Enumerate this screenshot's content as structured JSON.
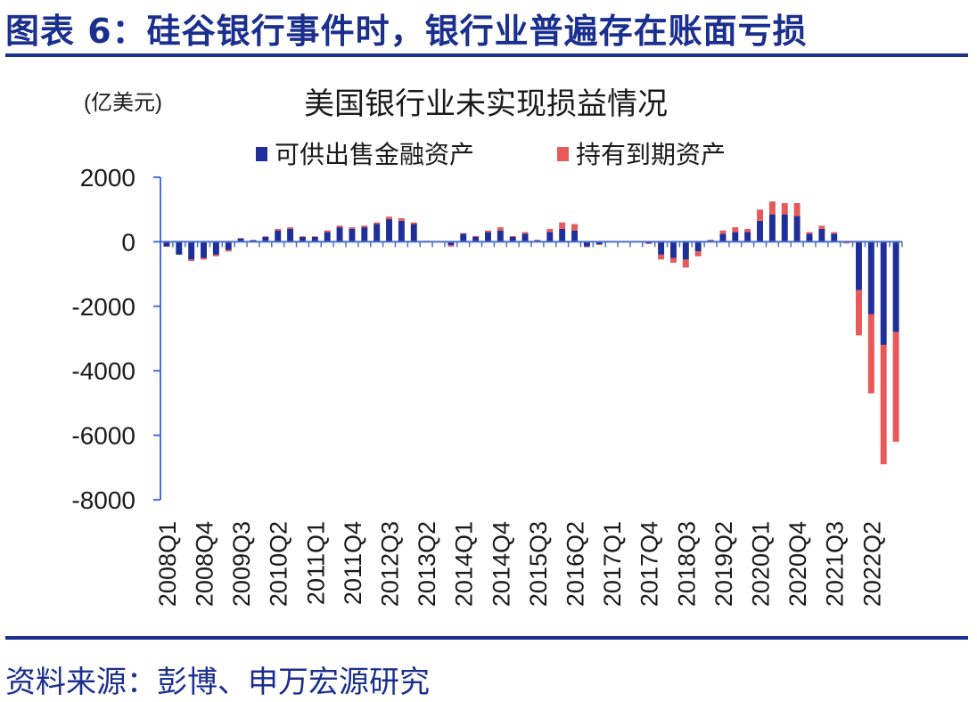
{
  "figure_title": "图表 6：硅谷银行事件时，银行业普遍存在账面亏损",
  "source_note": "资料来源：彭博、申万宏源研究",
  "colors": {
    "afs": "#1f2f9a",
    "htm": "#e8595a",
    "axis": "#4a6fd0",
    "title": "#1b2f8e"
  },
  "chart_data": {
    "type": "bar",
    "stacked": true,
    "title": "美国银行业未实现损益情况",
    "unit_label": "(亿美元)",
    "legend_position": "top",
    "ylim": [
      -8000,
      2000
    ],
    "yticks": [
      2000,
      0,
      -2000,
      -4000,
      -6000,
      -8000
    ],
    "grid": false,
    "categories": [
      "2008Q1",
      "2008Q2",
      "2008Q3",
      "2008Q4",
      "2009Q1",
      "2009Q2",
      "2009Q3",
      "2009Q4",
      "2010Q1",
      "2010Q2",
      "2010Q3",
      "2010Q4",
      "2011Q1",
      "2011Q2",
      "2011Q3",
      "2011Q4",
      "2012Q1",
      "2012Q2",
      "2012Q3",
      "2012Q4",
      "2013Q1",
      "2013Q2",
      "2013Q3",
      "2013Q4",
      "2014Q1",
      "2014Q2",
      "2014Q3",
      "2014Q4",
      "2015Q1",
      "2015Q2",
      "2015Q3",
      "2015Q4",
      "2016Q1",
      "2016Q2",
      "2016Q3",
      "2016Q4",
      "2017Q1",
      "2017Q2",
      "2017Q3",
      "2017Q4",
      "2018Q1",
      "2018Q2",
      "2018Q3",
      "2018Q4",
      "2019Q1",
      "2019Q2",
      "2019Q3",
      "2019Q4",
      "2020Q1",
      "2020Q2",
      "2020Q3",
      "2020Q4",
      "2021Q1",
      "2021Q2",
      "2021Q3",
      "2021Q4",
      "2022Q1",
      "2022Q2",
      "2022Q3",
      "2022Q4"
    ],
    "tick_labels": [
      "2008Q1",
      "2008Q4",
      "2009Q3",
      "2010Q2",
      "2011Q1",
      "2011Q4",
      "2012Q3",
      "2013Q2",
      "2014Q1",
      "2014Q4",
      "2015Q3",
      "2016Q2",
      "2017Q1",
      "2017Q4",
      "2018Q3",
      "2019Q2",
      "2020Q1",
      "2020Q4",
      "2021Q3",
      "2022Q2"
    ],
    "series": [
      {
        "name": "可供出售金融资产",
        "values": [
          -150,
          -400,
          -550,
          -500,
          -400,
          -250,
          100,
          50,
          150,
          350,
          400,
          150,
          150,
          300,
          450,
          400,
          450,
          550,
          700,
          650,
          550,
          20,
          0,
          -100,
          250,
          150,
          300,
          350,
          150,
          250,
          50,
          300,
          400,
          350,
          -150,
          -80,
          10,
          10,
          20,
          -50,
          -400,
          -500,
          -550,
          -300,
          50,
          250,
          300,
          300,
          650,
          850,
          850,
          800,
          250,
          400,
          250,
          -30,
          -1500,
          -2250,
          -3200,
          -2800
        ]
      },
      {
        "name": "持有到期资产",
        "values": [
          0,
          0,
          -50,
          -50,
          -50,
          -50,
          20,
          10,
          20,
          50,
          50,
          20,
          20,
          50,
          50,
          50,
          50,
          50,
          80,
          80,
          50,
          10,
          0,
          -50,
          20,
          30,
          50,
          100,
          30,
          50,
          10,
          100,
          200,
          200,
          -20,
          -20,
          0,
          0,
          0,
          -20,
          -150,
          -150,
          -250,
          -150,
          10,
          100,
          150,
          100,
          350,
          400,
          350,
          400,
          50,
          100,
          50,
          -20,
          -1400,
          -2450,
          -3700,
          -3400
        ]
      }
    ]
  }
}
